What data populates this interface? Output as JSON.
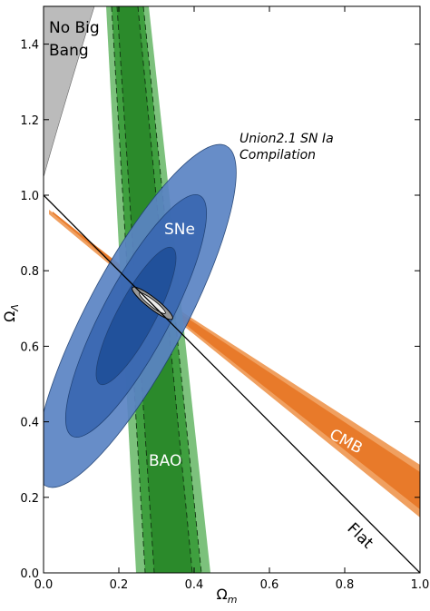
{
  "chart_data": {
    "type": "contour",
    "xlabel": "Ωm",
    "ylabel": "ΩΛ",
    "xlim": [
      0,
      1
    ],
    "ylim": [
      0,
      1.5
    ],
    "xticks": [
      {
        "value": 0,
        "label": "0.0"
      },
      {
        "value": 0.2,
        "label": "0.2"
      },
      {
        "value": 0.4,
        "label": "0.4"
      },
      {
        "value": 0.6,
        "label": "0.6"
      },
      {
        "value": 0.8,
        "label": "0.8"
      },
      {
        "value": 1,
        "label": "1.0"
      }
    ],
    "yticks": [
      {
        "value": 0,
        "label": "0.0"
      },
      {
        "value": 0.2,
        "label": "0.2"
      },
      {
        "value": 0.4,
        "label": "0.4"
      },
      {
        "value": 0.6,
        "label": "0.6"
      },
      {
        "value": 0.8,
        "label": "0.8"
      },
      {
        "value": 1,
        "label": "1.0"
      },
      {
        "value": 1.2,
        "label": "1.2"
      },
      {
        "value": 1.4,
        "label": "1.4"
      }
    ],
    "grid": false,
    "annotations": [
      "No Big",
      "Bang",
      "Union2.1 SN Ia",
      "Compilation",
      "SNe",
      "BAO",
      "CMB",
      "Flat"
    ]
  }
}
